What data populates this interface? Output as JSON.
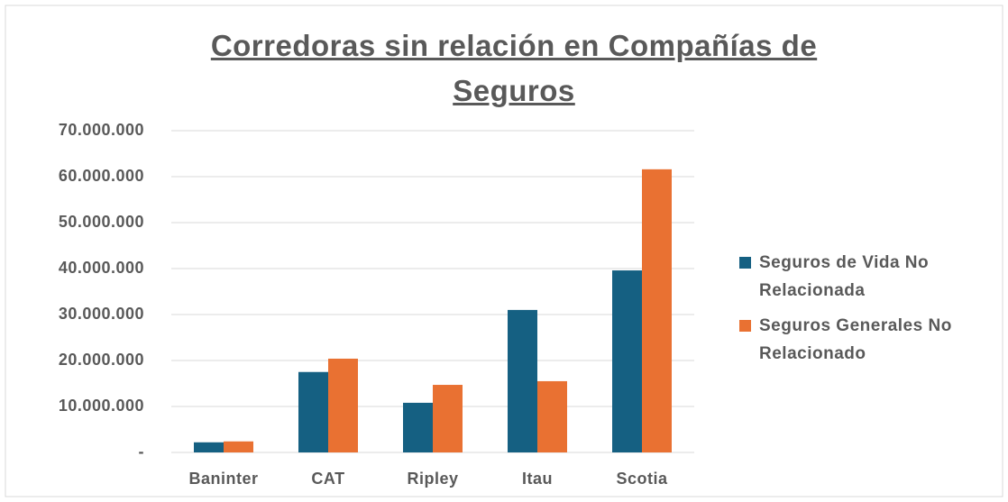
{
  "chart_data": {
    "type": "bar",
    "title": "Corredoras sin relación en Compañías de Seguros",
    "categories": [
      "Baninter",
      "CAT",
      "Ripley",
      "Itau",
      "Scotia"
    ],
    "series": [
      {
        "name": "Seguros de Vida No Relacionada",
        "color": "#156082",
        "values": [
          2200000,
          17500000,
          10800000,
          31000000,
          39600000
        ]
      },
      {
        "name": "Seguros Generales No Relacionado",
        "color": "#e97132",
        "values": [
          2400000,
          20400000,
          14700000,
          15500000,
          61600000
        ]
      }
    ],
    "ylim": [
      0,
      70000000
    ],
    "yticks": [
      {
        "value": 0,
        "label": "-"
      },
      {
        "value": 10000000,
        "label": "10.000.000"
      },
      {
        "value": 20000000,
        "label": "20.000.000"
      },
      {
        "value": 30000000,
        "label": "30.000.000"
      },
      {
        "value": 40000000,
        "label": "40.000.000"
      },
      {
        "value": 50000000,
        "label": "50.000.000"
      },
      {
        "value": 60000000,
        "label": "60.000.000"
      },
      {
        "value": 70000000,
        "label": "70.000.000"
      }
    ],
    "grid": true,
    "legend": "right"
  }
}
